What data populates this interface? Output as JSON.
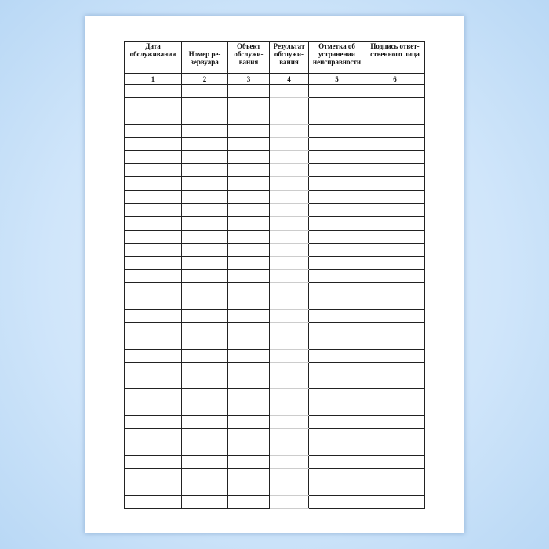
{
  "columns": [
    {
      "header": "Дата обслуживания",
      "number": "1"
    },
    {
      "header": "Номер ре-зервуара",
      "number": "2"
    },
    {
      "header": "Объект обслужи-вания",
      "number": "3"
    },
    {
      "header": "Результат обслужи-вания",
      "number": "4"
    },
    {
      "header": "Отметка об устранении неисправности",
      "number": "5"
    },
    {
      "header": "Подпись ответ-ственного лица",
      "number": "6"
    }
  ],
  "empty_rows": 32
}
